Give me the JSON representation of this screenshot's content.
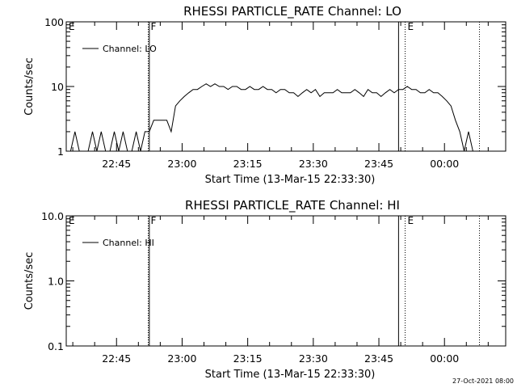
{
  "chart_data": [
    {
      "type": "line",
      "title": "RHESSI PARTICLE_RATE Channel: LO",
      "xlabel": "Start Time (13-Mar-15 22:33:30)",
      "ylabel": "Counts/sec",
      "yscale": "log",
      "ylim": [
        1,
        100
      ],
      "yticks": [
        "1",
        "10",
        "100"
      ],
      "xlim": [
        "22:33:30",
        "00:14:00"
      ],
      "xticks": [
        "22:45",
        "23:00",
        "23:15",
        "23:30",
        "23:45",
        "00:00"
      ],
      "legend": "top-left",
      "grid": false,
      "series": [
        {
          "name": "Channel: LO",
          "x_minutes": [
            0,
            1,
            2,
            3,
            4,
            5,
            6,
            7,
            8,
            9,
            10,
            11,
            12,
            13,
            14,
            15,
            16,
            17,
            18,
            19,
            20,
            21,
            22,
            23,
            24,
            25,
            26,
            27,
            28,
            29,
            30,
            31,
            32,
            33,
            34,
            35,
            36,
            37,
            38,
            39,
            40,
            41,
            42,
            43,
            44,
            45,
            46,
            47,
            48,
            49,
            50,
            51,
            52,
            53,
            54,
            55,
            56,
            57,
            58,
            59,
            60,
            61,
            62,
            63,
            64,
            65,
            66,
            67,
            68,
            69,
            70,
            71,
            72,
            73,
            74,
            75,
            76,
            77,
            78,
            79,
            80,
            81,
            82,
            83,
            84,
            85,
            86,
            87,
            88,
            89,
            90,
            91,
            92,
            93,
            94
          ],
          "y": [
            1,
            1,
            2,
            1,
            1,
            1,
            2,
            1,
            2,
            1,
            1,
            2,
            1,
            2,
            1,
            1,
            2,
            1,
            2,
            2,
            3,
            3,
            3,
            3,
            2,
            5,
            6,
            7,
            8,
            9,
            9,
            10,
            11,
            10,
            11,
            10,
            10,
            9,
            10,
            10,
            9,
            9,
            10,
            9,
            9,
            10,
            9,
            9,
            8,
            9,
            9,
            8,
            8,
            7,
            8,
            9,
            8,
            9,
            7,
            8,
            8,
            8,
            9,
            8,
            8,
            8,
            9,
            8,
            7,
            9,
            8,
            8,
            7,
            8,
            9,
            8,
            9,
            9,
            10,
            9,
            9,
            8,
            8,
            9,
            8,
            8,
            7,
            6,
            5,
            3,
            2,
            1,
            2,
            1,
            1
          ],
          "color": "#000000"
        }
      ],
      "markers": [
        {
          "label": "E",
          "time": "22:33:30",
          "style": "dotted"
        },
        {
          "label": "F",
          "time": "22:52:15",
          "style": "dotted"
        },
        {
          "label": "",
          "time": "22:52:30",
          "style": "solid"
        },
        {
          "label": "",
          "time": "23:49:30",
          "style": "solid"
        },
        {
          "label": "E",
          "time": "23:51:00",
          "style": "dotted"
        },
        {
          "label": "",
          "time": "00:08:00",
          "style": "dotted"
        }
      ]
    },
    {
      "type": "line",
      "title": "RHESSI PARTICLE_RATE Channel: HI",
      "xlabel": "Start Time (13-Mar-15 22:33:30)",
      "ylabel": "Counts/sec",
      "yscale": "log",
      "ylim": [
        0.1,
        10.0
      ],
      "yticks": [
        "0.1",
        "1.0",
        "10.0"
      ],
      "xlim": [
        "22:33:30",
        "00:14:00"
      ],
      "xticks": [
        "22:45",
        "23:00",
        "23:15",
        "23:30",
        "23:45",
        "00:00"
      ],
      "legend": "top-left",
      "grid": false,
      "series": [
        {
          "name": "Channel: HI",
          "x_minutes": [],
          "y": [],
          "color": "#000000"
        }
      ],
      "markers": [
        {
          "label": "E",
          "time": "22:33:30",
          "style": "dotted"
        },
        {
          "label": "F",
          "time": "22:52:15",
          "style": "dotted"
        },
        {
          "label": "",
          "time": "22:52:30",
          "style": "solid"
        },
        {
          "label": "",
          "time": "23:49:30",
          "style": "solid"
        },
        {
          "label": "E",
          "time": "23:51:00",
          "style": "dotted"
        },
        {
          "label": "",
          "time": "00:08:00",
          "style": "dotted"
        }
      ]
    }
  ],
  "footer": {
    "timestamp": "27-Oct-2021 08:00"
  }
}
